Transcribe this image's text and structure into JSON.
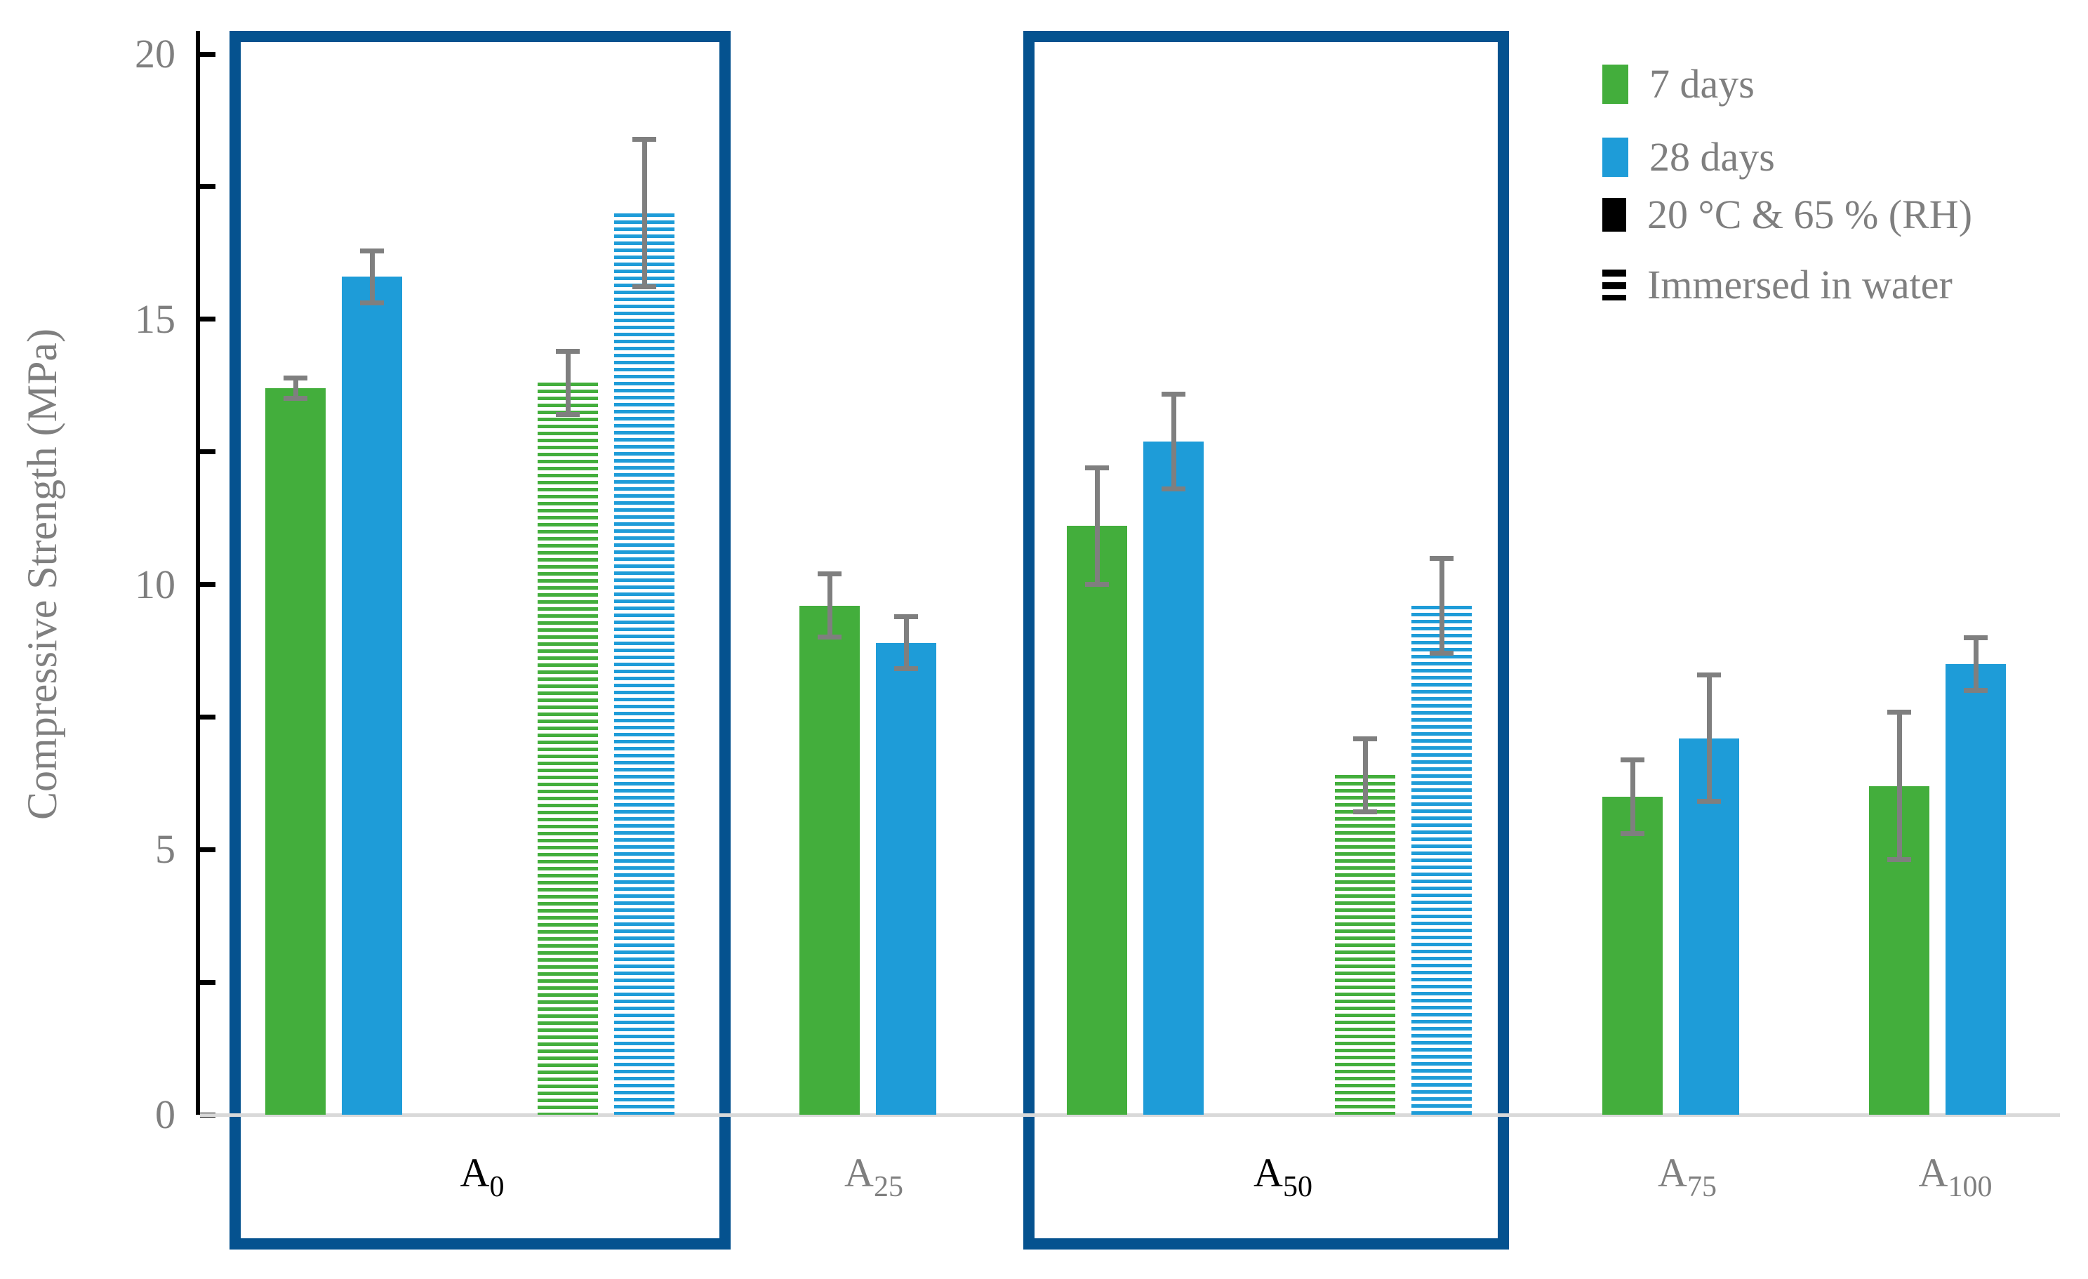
{
  "chart_data": {
    "type": "bar",
    "title": "",
    "ylabel": "Compressive Strength (MPa)",
    "xlabel": "",
    "ylim": [
      0,
      20
    ],
    "yticks": [
      0,
      5,
      10,
      15,
      20
    ],
    "minor_tick_step": 2.5,
    "grid": false,
    "legend_position": "top-right",
    "legend": [
      {
        "label": "7 days",
        "swatch": "solid-green"
      },
      {
        "label": "28 days",
        "swatch": "solid-blue"
      },
      {
        "label": "20 °C & 65 % (RH)",
        "swatch": "solid-black"
      },
      {
        "label": "Immersed in water",
        "swatch": "striped-black"
      }
    ],
    "series_names": [
      "7 days",
      "28 days"
    ],
    "conditions": [
      "20 °C & 65 % (RH)",
      "Immersed in water"
    ],
    "groups": [
      {
        "label": "A",
        "subscript": "0",
        "highlighted": true,
        "bars": [
          {
            "series": "7 days",
            "condition": "20 °C & 65 % (RH)",
            "value": 13.7,
            "error": 0.2,
            "color": "green",
            "style": "solid"
          },
          {
            "series": "28 days",
            "condition": "20 °C & 65 % (RH)",
            "value": 15.8,
            "error": 0.5,
            "color": "blue",
            "style": "solid"
          },
          {
            "series": "7 days",
            "condition": "Immersed in water",
            "value": 13.8,
            "error": 0.6,
            "color": "green",
            "style": "striped"
          },
          {
            "series": "28 days",
            "condition": "Immersed in water",
            "value": 17.0,
            "error": 1.4,
            "color": "blue",
            "style": "striped"
          }
        ]
      },
      {
        "label": "A",
        "subscript": "25",
        "highlighted": false,
        "bars": [
          {
            "series": "7 days",
            "condition": "20 °C & 65 % (RH)",
            "value": 9.6,
            "error": 0.6,
            "color": "green",
            "style": "solid"
          },
          {
            "series": "28 days",
            "condition": "20 °C & 65 % (RH)",
            "value": 8.9,
            "error": 0.5,
            "color": "blue",
            "style": "solid"
          }
        ]
      },
      {
        "label": "A",
        "subscript": "50",
        "highlighted": true,
        "bars": [
          {
            "series": "7 days",
            "condition": "20 °C & 65 % (RH)",
            "value": 11.1,
            "error": 1.1,
            "color": "green",
            "style": "solid"
          },
          {
            "series": "28 days",
            "condition": "20 °C & 65 % (RH)",
            "value": 12.7,
            "error": 0.9,
            "color": "blue",
            "style": "solid"
          },
          {
            "series": "7 days",
            "condition": "Immersed in water",
            "value": 6.4,
            "error": 0.7,
            "color": "green",
            "style": "striped"
          },
          {
            "series": "28 days",
            "condition": "Immersed in water",
            "value": 9.6,
            "error": 0.9,
            "color": "blue",
            "style": "striped"
          }
        ]
      },
      {
        "label": "A",
        "subscript": "75",
        "highlighted": false,
        "bars": [
          {
            "series": "7 days",
            "condition": "20 °C & 65 % (RH)",
            "value": 6.0,
            "error": 0.7,
            "color": "green",
            "style": "solid"
          },
          {
            "series": "28 days",
            "condition": "20 °C & 65 % (RH)",
            "value": 7.1,
            "error": 1.2,
            "color": "blue",
            "style": "solid"
          }
        ]
      },
      {
        "label": "A",
        "subscript": "100",
        "highlighted": false,
        "bars": [
          {
            "series": "7 days",
            "condition": "20 °C & 65 % (RH)",
            "value": 6.2,
            "error": 1.4,
            "color": "green",
            "style": "solid"
          },
          {
            "series": "28 days",
            "condition": "20 °C & 65 % (RH)",
            "value": 8.5,
            "error": 0.5,
            "color": "blue",
            "style": "solid"
          }
        ]
      }
    ],
    "colors": {
      "green": "#43ae3c",
      "blue": "#1e9cd8",
      "highlight_box": "#05528f",
      "axis": "#000000",
      "baseline": "#d9d9d9",
      "text": "#7f7f7f",
      "error_bar": "#7f7f7f",
      "label_highlighted": "#000000"
    }
  }
}
